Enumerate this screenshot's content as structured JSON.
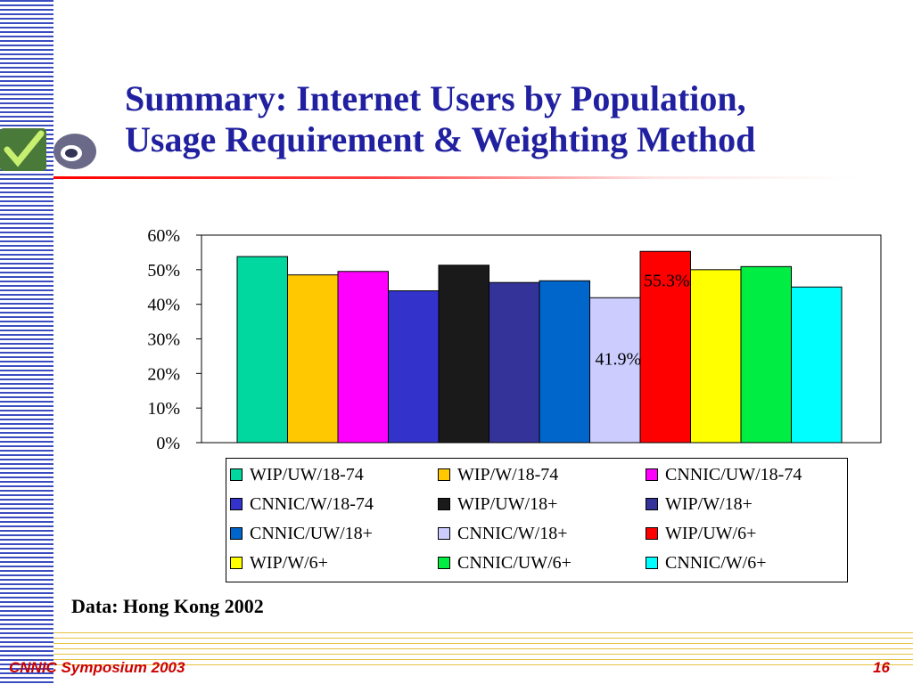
{
  "slide": {
    "title_line1": "Summary: Internet Users by Population,",
    "title_line2": "Usage Requirement & Weighting Method",
    "data_note": "Data: Hong Kong 2002",
    "footer_left": "CNNIC Symposium 2003",
    "page_number": "16",
    "colors": {
      "title": "#2020a0",
      "footer": "#cc0000",
      "stripes": "#3b4cc0",
      "rule": "#ff0000"
    }
  },
  "chart_data": {
    "type": "bar",
    "title": "",
    "xlabel": "",
    "ylabel": "",
    "ylim": [
      0,
      60
    ],
    "yticks": [
      "0%",
      "10%",
      "20%",
      "30%",
      "40%",
      "50%",
      "60%"
    ],
    "grid": false,
    "legend_position": "bottom",
    "series": [
      {
        "name": "WIP/UW/18-74",
        "value": 53.8,
        "color": "#00d8a0"
      },
      {
        "name": "WIP/W/18-74",
        "value": 48.5,
        "color": "#ffc800"
      },
      {
        "name": "CNNIC/UW/18-74",
        "value": 49.5,
        "color": "#ff00ff"
      },
      {
        "name": "CNNIC/W/18-74",
        "value": 43.9,
        "color": "#3333cc"
      },
      {
        "name": "WIP/UW/18+",
        "value": 51.3,
        "color": "#1a1a1a"
      },
      {
        "name": "WIP/W/18+",
        "value": 46.3,
        "color": "#333399"
      },
      {
        "name": "CNNIC/UW/18+",
        "value": 46.8,
        "color": "#0066cc"
      },
      {
        "name": "CNNIC/W/18+",
        "value": 41.9,
        "color": "#ccccff"
      },
      {
        "name": "WIP/UW/6+",
        "value": 55.3,
        "color": "#ff0000"
      },
      {
        "name": "WIP/W/6+",
        "value": 50.0,
        "color": "#ffff00"
      },
      {
        "name": "CNNIC/UW/6+",
        "value": 50.9,
        "color": "#00ee44"
      },
      {
        "name": "CNNIC/W/6+",
        "value": 45.0,
        "color": "#00ffff"
      }
    ],
    "annotations": [
      {
        "text": "55.3%",
        "series": "WIP/UW/6+"
      },
      {
        "text": "41.9%",
        "series": "CNNIC/W/18+"
      }
    ]
  }
}
